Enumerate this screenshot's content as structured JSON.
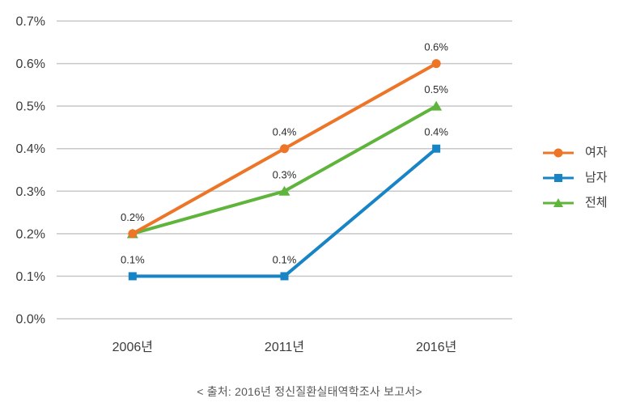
{
  "chart_data": {
    "type": "line",
    "categories": [
      "2006년",
      "2011년",
      "2016년"
    ],
    "series": [
      {
        "id": "female",
        "name": "여자",
        "marker": "circle",
        "color": "#ED7528",
        "values": [
          0.2,
          0.4,
          0.6
        ],
        "point_labels": [
          "0.2%",
          "0.4%",
          "0.6%"
        ]
      },
      {
        "id": "male",
        "name": "남자",
        "marker": "square",
        "color": "#1784C5",
        "values": [
          0.1,
          0.1,
          0.4
        ],
        "point_labels": [
          "0.1%",
          "0.1%",
          "0.4%"
        ]
      },
      {
        "id": "total",
        "name": "전체",
        "marker": "triangle",
        "color": "#5FB43C",
        "values": [
          0.2,
          0.3,
          0.5
        ],
        "point_labels": [
          null,
          "0.3%",
          "0.5%"
        ]
      }
    ],
    "title": "",
    "xlabel": "",
    "ylabel": "",
    "ylim": [
      0,
      0.7
    ],
    "y_step": 0.1,
    "y_ticks": [
      "0.7%",
      "0.6%",
      "0.5%",
      "0.4%",
      "0.3%",
      "0.2%",
      "0.1%",
      "0.0%"
    ],
    "grid": true,
    "legend_position": "right",
    "draw_order": [
      2,
      1,
      0
    ],
    "style": {
      "grid_color": "#c8c8c8",
      "tick_text_color": "#3c3c3c",
      "data_label_color": "#2b2b2b",
      "background": "#ffffff"
    }
  },
  "caption": "< 출처: 2016년 정신질환실태역학조사 보고서>"
}
